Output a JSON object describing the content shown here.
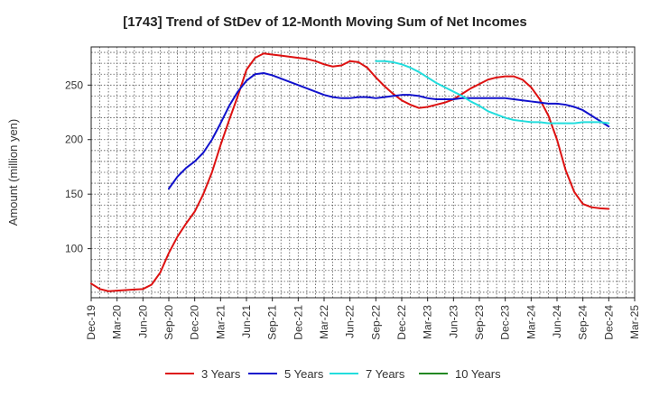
{
  "chart_data": {
    "type": "line",
    "title": "[1743]  Trend of StDev of 12-Month Moving Sum of Net Incomes",
    "ylabel": "Amount (million yen)",
    "xlabel": "",
    "ylim": [
      55,
      285
    ],
    "yticks": [
      100,
      150,
      200,
      250
    ],
    "xlim": [
      "Dec-19",
      "Mar-25"
    ],
    "xticks": [
      "Dec-19",
      "Mar-20",
      "Jun-20",
      "Sep-20",
      "Dec-20",
      "Mar-21",
      "Jun-21",
      "Sep-21",
      "Dec-21",
      "Mar-22",
      "Jun-22",
      "Sep-22",
      "Dec-22",
      "Mar-23",
      "Jun-23",
      "Sep-23",
      "Dec-23",
      "Mar-24",
      "Jun-24",
      "Sep-24",
      "Dec-24",
      "Mar-25"
    ],
    "grid": true,
    "legend_position": "bottom",
    "series": [
      {
        "name": "3 Years",
        "color": "#dd1111",
        "points": [
          [
            "Dec-19",
            68
          ],
          [
            "Jan-20",
            63
          ],
          [
            "Feb-20",
            61
          ],
          [
            "Mar-20",
            61.5
          ],
          [
            "Apr-20",
            62
          ],
          [
            "May-20",
            62.5
          ],
          [
            "Jun-20",
            63
          ],
          [
            "Jul-20",
            67
          ],
          [
            "Aug-20",
            78
          ],
          [
            "Sep-20",
            96
          ],
          [
            "Oct-20",
            111
          ],
          [
            "Nov-20",
            123
          ],
          [
            "Dec-20",
            134
          ],
          [
            "Jan-21",
            150
          ],
          [
            "Feb-21",
            170
          ],
          [
            "Mar-21",
            195
          ],
          [
            "Apr-21",
            218
          ],
          [
            "May-21",
            240
          ],
          [
            "Jun-21",
            264
          ],
          [
            "Jul-21",
            275
          ],
          [
            "Aug-21",
            279
          ],
          [
            "Sep-21",
            278
          ],
          [
            "Oct-21",
            277
          ],
          [
            "Nov-21",
            276
          ],
          [
            "Dec-21",
            275
          ],
          [
            "Jan-22",
            274
          ],
          [
            "Feb-22",
            272
          ],
          [
            "Mar-22",
            269
          ],
          [
            "Apr-22",
            267
          ],
          [
            "May-22",
            268
          ],
          [
            "Jun-22",
            272
          ],
          [
            "Jul-22",
            271
          ],
          [
            "Aug-22",
            266
          ],
          [
            "Sep-22",
            257
          ],
          [
            "Oct-22",
            249
          ],
          [
            "Nov-22",
            242
          ],
          [
            "Dec-22",
            236
          ],
          [
            "Jan-23",
            232
          ],
          [
            "Feb-23",
            229
          ],
          [
            "Mar-23",
            230
          ],
          [
            "Apr-23",
            232
          ],
          [
            "May-23",
            234
          ],
          [
            "Jun-23",
            237
          ],
          [
            "Jul-23",
            242
          ],
          [
            "Aug-23",
            247
          ],
          [
            "Sep-23",
            251
          ],
          [
            "Oct-23",
            255
          ],
          [
            "Nov-23",
            257
          ],
          [
            "Dec-23",
            258
          ],
          [
            "Jan-24",
            258
          ],
          [
            "Feb-24",
            255
          ],
          [
            "Mar-24",
            248
          ],
          [
            "Apr-24",
            237
          ],
          [
            "May-24",
            222
          ],
          [
            "Jun-24",
            200
          ],
          [
            "Jul-24",
            172
          ],
          [
            "Aug-24",
            152
          ],
          [
            "Sep-24",
            141
          ],
          [
            "Oct-24",
            138
          ],
          [
            "Nov-24",
            137
          ],
          [
            "Dec-24",
            136.5
          ]
        ]
      },
      {
        "name": "5 Years",
        "color": "#1111cc",
        "points": [
          [
            "Sep-20",
            155
          ],
          [
            "Oct-20",
            166
          ],
          [
            "Nov-20",
            174
          ],
          [
            "Dec-20",
            180
          ],
          [
            "Jan-21",
            188
          ],
          [
            "Feb-21",
            200
          ],
          [
            "Mar-21",
            215
          ],
          [
            "Apr-21",
            231
          ],
          [
            "May-21",
            244
          ],
          [
            "Jun-21",
            254
          ],
          [
            "Jul-21",
            260
          ],
          [
            "Aug-21",
            261
          ],
          [
            "Sep-21",
            259
          ],
          [
            "Oct-21",
            256
          ],
          [
            "Nov-21",
            253
          ],
          [
            "Dec-21",
            250
          ],
          [
            "Jan-22",
            247
          ],
          [
            "Feb-22",
            244
          ],
          [
            "Mar-22",
            241
          ],
          [
            "Apr-22",
            239
          ],
          [
            "May-22",
            238
          ],
          [
            "Jun-22",
            238
          ],
          [
            "Jul-22",
            239
          ],
          [
            "Aug-22",
            239
          ],
          [
            "Sep-22",
            238
          ],
          [
            "Oct-22",
            239
          ],
          [
            "Nov-22",
            240
          ],
          [
            "Dec-22",
            241
          ],
          [
            "Jan-23",
            241
          ],
          [
            "Feb-23",
            240
          ],
          [
            "Mar-23",
            238
          ],
          [
            "Apr-23",
            237
          ],
          [
            "May-23",
            237
          ],
          [
            "Jun-23",
            237
          ],
          [
            "Jul-23",
            238
          ],
          [
            "Aug-23",
            238
          ],
          [
            "Sep-23",
            238
          ],
          [
            "Oct-23",
            238
          ],
          [
            "Nov-23",
            238
          ],
          [
            "Dec-23",
            238
          ],
          [
            "Jan-24",
            237
          ],
          [
            "Feb-24",
            236
          ],
          [
            "Mar-24",
            235
          ],
          [
            "Apr-24",
            234
          ],
          [
            "May-24",
            233
          ],
          [
            "Jun-24",
            233
          ],
          [
            "Jul-24",
            232
          ],
          [
            "Aug-24",
            230
          ],
          [
            "Sep-24",
            227
          ],
          [
            "Oct-24",
            222
          ],
          [
            "Nov-24",
            217
          ],
          [
            "Dec-24",
            212
          ]
        ]
      },
      {
        "name": "7 Years",
        "color": "#22dddd",
        "points": [
          [
            "Sep-22",
            272
          ],
          [
            "Oct-22",
            272
          ],
          [
            "Nov-22",
            271
          ],
          [
            "Dec-22",
            269
          ],
          [
            "Jan-23",
            266
          ],
          [
            "Feb-23",
            262
          ],
          [
            "Mar-23",
            257
          ],
          [
            "Apr-23",
            252
          ],
          [
            "May-23",
            248
          ],
          [
            "Jun-23",
            244
          ],
          [
            "Jul-23",
            240
          ],
          [
            "Aug-23",
            235
          ],
          [
            "Sep-23",
            231
          ],
          [
            "Oct-23",
            226
          ],
          [
            "Nov-23",
            223
          ],
          [
            "Dec-23",
            220
          ],
          [
            "Jan-24",
            218
          ],
          [
            "Feb-24",
            217
          ],
          [
            "Mar-24",
            216
          ],
          [
            "Apr-24",
            216
          ],
          [
            "May-24",
            215
          ],
          [
            "Jun-24",
            215
          ],
          [
            "Jul-24",
            215
          ],
          [
            "Aug-24",
            215
          ],
          [
            "Sep-24",
            216
          ],
          [
            "Oct-24",
            216
          ],
          [
            "Nov-24",
            216
          ],
          [
            "Dec-24",
            215
          ]
        ]
      },
      {
        "name": "10 Years",
        "color": "#228822",
        "points": []
      }
    ]
  }
}
